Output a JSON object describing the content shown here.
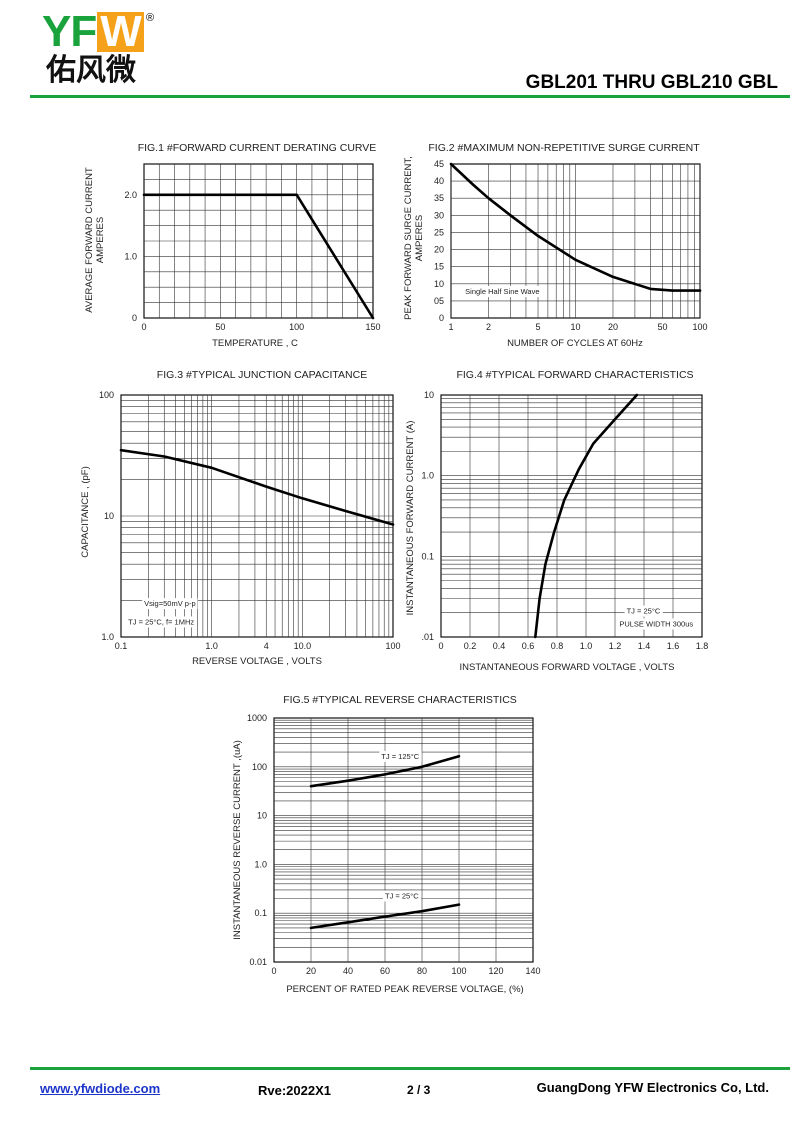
{
  "header": {
    "logo_text": "YFW",
    "logo_registered": "®",
    "logo_chinese": "佑风微",
    "title": "GBL201 THRU GBL210  GBL"
  },
  "footer": {
    "website": "www.yfwdiode.com",
    "revision": "Rve:2022X1",
    "page": "2 / 3",
    "company": "GuangDong YFW Electronics Co, Ltd."
  },
  "colors": {
    "brand_green": "#1aa33c",
    "brand_orange": "#f5a21a",
    "link_blue": "#1d35c8"
  },
  "chart_data": [
    {
      "id": "fig1",
      "type": "line",
      "title": "FIG.1 #FORWARD CURRENT DERATING CURVE",
      "xlabel": "TEMPERATURE , C",
      "ylabel": [
        "AVERAGE FORWARD CURRENT",
        "AMPERES"
      ],
      "xscale": "linear",
      "yscale": "linear",
      "xlim": [
        0,
        150
      ],
      "ylim": [
        0,
        2.5
      ],
      "xticks": [
        0,
        50,
        100,
        150
      ],
      "xticklabels": [
        "0",
        "50",
        "100",
        "150"
      ],
      "yticks": [
        0,
        1.0,
        2.0
      ],
      "yticklabels": [
        "0",
        "1.0",
        "2.0"
      ],
      "xgrid": [
        10,
        20,
        30,
        40,
        50,
        60,
        70,
        80,
        90,
        100,
        110,
        120,
        130,
        140
      ],
      "ygrid": [
        0.25,
        0.5,
        0.75,
        1.0,
        1.25,
        1.5,
        1.75,
        2.0,
        2.25
      ],
      "series": [
        {
          "x": [
            0,
            100,
            150
          ],
          "y": [
            2.0,
            2.0,
            0
          ]
        }
      ],
      "annotations": []
    },
    {
      "id": "fig2",
      "type": "line",
      "title": "FIG.2 #MAXIMUM NON-REPETITIVE SURGE CURRENT",
      "xlabel": "NUMBER OF CYCLES AT 60Hz",
      "ylabel": [
        "PEAK FORWARD SURGE CURRENT,",
        "AMPERES"
      ],
      "xscale": "log",
      "yscale": "linear",
      "xlim": [
        1,
        100
      ],
      "ylim": [
        0,
        45
      ],
      "xticks": [
        1,
        2,
        5,
        10,
        20,
        50,
        100
      ],
      "xticklabels": [
        "1",
        "2",
        "5",
        "10",
        "20",
        "50",
        "100"
      ],
      "yticks": [
        0,
        5,
        10,
        15,
        20,
        25,
        30,
        35,
        40,
        45
      ],
      "yticklabels": [
        "0",
        "05",
        "10",
        "15",
        "20",
        "25",
        "30",
        "35",
        "40",
        "45"
      ],
      "xgrid": [
        1,
        2,
        3,
        4,
        5,
        6,
        7,
        8,
        9,
        10,
        20,
        30,
        40,
        50,
        60,
        70,
        80,
        90,
        100
      ],
      "ygrid": [
        5,
        10,
        15,
        20,
        25,
        30,
        35,
        40
      ],
      "series": [
        {
          "x": [
            1,
            1.5,
            2,
            3,
            5,
            10,
            20,
            40,
            60,
            100
          ],
          "y": [
            45,
            39,
            35,
            30,
            24,
            17,
            12,
            8.5,
            8,
            8
          ]
        }
      ],
      "annotations": [
        {
          "text": "Single Half Sine Wave",
          "x": 1.3,
          "y": 7
        }
      ]
    },
    {
      "id": "fig3",
      "type": "line",
      "title": "FIG.3 #TYPICAL JUNCTION CAPACITANCE",
      "xlabel": "REVERSE VOLTAGE , VOLTS",
      "ylabel": [
        "CAPACITANCE , (pF)"
      ],
      "xscale": "log",
      "yscale": "log",
      "xlim": [
        0.1,
        100
      ],
      "ylim": [
        1,
        100
      ],
      "xticks": [
        0.1,
        1,
        4,
        10,
        100
      ],
      "xticklabels": [
        "0.1",
        "1.0",
        "4",
        "10.0",
        "100"
      ],
      "yticks": [
        1,
        10,
        100
      ],
      "yticklabels": [
        "1.0",
        "10",
        "100"
      ],
      "xgrid": [
        0.2,
        0.3,
        0.4,
        0.5,
        0.6,
        0.7,
        0.8,
        0.9,
        1,
        2,
        3,
        4,
        5,
        6,
        7,
        8,
        9,
        10,
        20,
        30,
        40,
        50,
        60,
        70,
        80,
        90
      ],
      "ygrid": [
        2,
        3,
        4,
        5,
        6,
        7,
        8,
        9,
        10,
        20,
        30,
        40,
        50,
        60,
        70,
        80,
        90
      ],
      "series": [
        {
          "x": [
            0.1,
            0.3,
            1,
            4,
            10,
            30,
            100
          ],
          "y": [
            35,
            31,
            25,
            17.5,
            14,
            11,
            8.5
          ]
        }
      ],
      "annotations": [
        {
          "text": "Vsig=50mV p-p",
          "x": 0.18,
          "y": 1.8
        },
        {
          "text": "TJ = 25°C,  f= 1MHz",
          "x": 0.12,
          "y": 1.27
        }
      ]
    },
    {
      "id": "fig4",
      "type": "line",
      "title": "FIG.4 #TYPICAL FORWARD CHARACTERISTICS",
      "xlabel": "INSTANTANEOUS FORWARD VOLTAGE , VOLTS",
      "ylabel": [
        "INSTANTANEOUS  FORWARD CURRENT (A)"
      ],
      "xscale": "linear",
      "yscale": "log",
      "xlim": [
        0,
        1.8
      ],
      "ylim": [
        0.01,
        10
      ],
      "xticks": [
        0,
        0.2,
        0.4,
        0.6,
        0.8,
        1.0,
        1.2,
        1.4,
        1.6,
        1.8
      ],
      "xticklabels": [
        "0",
        "0.2",
        "0.4",
        "0.6",
        "0.8",
        "1.0",
        "1.2",
        "1.4",
        "1.6",
        "1.8"
      ],
      "yticks": [
        0.01,
        0.1,
        1,
        10
      ],
      "yticklabels": [
        ".01",
        "0.1",
        "1.0",
        "10"
      ],
      "xgrid": [
        0.2,
        0.4,
        0.6,
        0.8,
        1.0,
        1.2,
        1.4,
        1.6
      ],
      "ygrid": [
        0.02,
        0.03,
        0.04,
        0.05,
        0.06,
        0.07,
        0.08,
        0.09,
        0.1,
        0.2,
        0.3,
        0.4,
        0.5,
        0.6,
        0.7,
        0.8,
        0.9,
        1,
        2,
        3,
        4,
        5,
        6,
        7,
        8,
        9
      ],
      "series": [
        {
          "x": [
            0.65,
            0.68,
            0.72,
            0.78,
            0.85,
            0.95,
            1.05,
            1.2,
            1.35
          ],
          "y": [
            0.01,
            0.03,
            0.08,
            0.2,
            0.5,
            1.2,
            2.5,
            5,
            10
          ]
        }
      ],
      "annotations": [
        {
          "text": "TJ = 25°C",
          "x": 1.28,
          "y": 0.0195
        },
        {
          "text": "PULSE WIDTH 300us",
          "x": 1.23,
          "y": 0.0135
        }
      ]
    },
    {
      "id": "fig5",
      "type": "line",
      "title": "FIG.5 #TYPICAL REVERSE CHARACTERISTICS",
      "xlabel": "PERCENT OF RATED PEAK REVERSE VOLTAGE, (%)",
      "ylabel": [
        "INSTANTANEOUS REVERSE CURRENT ,(uA)"
      ],
      "xscale": "linear",
      "yscale": "log",
      "xlim": [
        0,
        140
      ],
      "ylim": [
        0.01,
        1000
      ],
      "xticks": [
        0,
        20,
        40,
        60,
        80,
        100,
        120,
        140
      ],
      "xticklabels": [
        "0",
        "20",
        "40",
        "60",
        "80",
        "100",
        "120",
        "140"
      ],
      "yticks": [
        0.01,
        0.1,
        1,
        10,
        100,
        1000
      ],
      "yticklabels": [
        "0.01",
        "0.1",
        "1.0",
        "10",
        "100",
        "1000"
      ],
      "xgrid": [
        20,
        40,
        60,
        80,
        100,
        120
      ],
      "ygrid": [
        0.02,
        0.03,
        0.04,
        0.05,
        0.06,
        0.07,
        0.08,
        0.09,
        0.1,
        0.2,
        0.3,
        0.4,
        0.5,
        0.6,
        0.7,
        0.8,
        0.9,
        1,
        2,
        3,
        4,
        5,
        6,
        7,
        8,
        9,
        10,
        20,
        30,
        40,
        50,
        60,
        70,
        80,
        90,
        100,
        200,
        300,
        400,
        500,
        600,
        700,
        800,
        900
      ],
      "series": [
        {
          "x": [
            20,
            40,
            60,
            80,
            100
          ],
          "y": [
            40,
            52,
            70,
            100,
            165
          ]
        },
        {
          "x": [
            20,
            40,
            60,
            80,
            100
          ],
          "y": [
            0.05,
            0.065,
            0.085,
            0.11,
            0.15
          ]
        }
      ],
      "annotations": [
        {
          "text": "TJ = 125°C",
          "x": 58,
          "y": 145
        },
        {
          "text": "TJ = 25°C",
          "x": 60,
          "y": 0.2
        }
      ]
    }
  ]
}
